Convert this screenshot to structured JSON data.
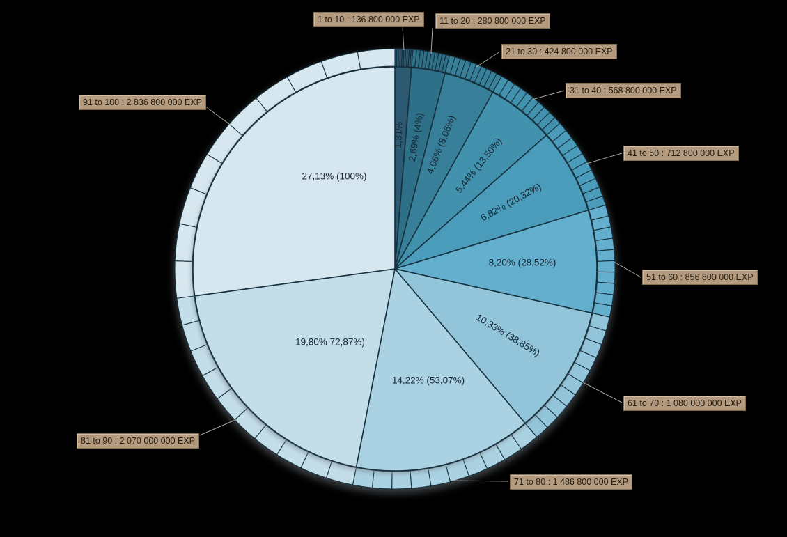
{
  "background": "#000000",
  "chart_data": {
    "type": "pie",
    "title": "",
    "unit": "EXP",
    "legend_position": "none",
    "start_angle_deg": 0,
    "direction": "clockwise",
    "outer_ring": "each slice subdivided into 10 level ticks (100 ticks total)",
    "categories": [
      "1 to 10",
      "11 to 20",
      "21 to 30",
      "31 to 40",
      "41 to 50",
      "51 to 60",
      "61 to 70",
      "71 to 80",
      "81 to 90",
      "91 to 100"
    ],
    "values": [
      136800000,
      280800000,
      424800000,
      568800000,
      712800000,
      856800000,
      1080000000,
      1486800000,
      2070000000,
      2836800000
    ],
    "slices": [
      {
        "range": "1 to 10",
        "value": 136800000,
        "callout": "1 to 10 : 136 800 000 EXP",
        "pct_label": "1,31%",
        "percent": 1.31,
        "cumulative_percent": 1.31,
        "color": "#2d5971"
      },
      {
        "range": "11 to 20",
        "value": 280800000,
        "callout": "11 to 20 : 280 800 000 EXP",
        "pct_label": "2,69% (4%)",
        "percent": 2.69,
        "cumulative_percent": 4.0,
        "color": "#2f7089"
      },
      {
        "range": "21 to 30",
        "value": 424800000,
        "callout": "21 to 30 : 424 800 000 EXP",
        "pct_label": "4,06% (8,06%)",
        "percent": 4.06,
        "cumulative_percent": 8.06,
        "color": "#38809a"
      },
      {
        "range": "31 to 40",
        "value": 568800000,
        "callout": "31 to 40 : 568 800 000 EXP",
        "pct_label": "5,44% (13,50%)",
        "percent": 5.44,
        "cumulative_percent": 13.5,
        "color": "#4291ad"
      },
      {
        "range": "41 to 50",
        "value": 712800000,
        "callout": "41 to 50 : 712 800 000 EXP",
        "pct_label": "6,82% (20,32%)",
        "percent": 6.82,
        "cumulative_percent": 20.32,
        "color": "#4a9cba"
      },
      {
        "range": "51 to 60",
        "value": 856800000,
        "callout": "51 to 60 : 856 800 000 EXP",
        "pct_label": "8,20% (28,52%)",
        "percent": 8.2,
        "cumulative_percent": 28.52,
        "color": "#63afcd"
      },
      {
        "range": "61 to 70",
        "value": 1080000000,
        "callout": "61 to 70 : 1 080 000 000 EXP",
        "pct_label": "10,33% (38,85%)",
        "percent": 10.33,
        "cumulative_percent": 38.85,
        "color": "#93c5da"
      },
      {
        "range": "71 to 80",
        "value": 1486800000,
        "callout": "71 to 80 : 1 486 800 000 EXP",
        "pct_label": "14,22% (53,07%)",
        "percent": 14.22,
        "cumulative_percent": 53.07,
        "color": "#abd2e2"
      },
      {
        "range": "81 to 90",
        "value": 2070000000,
        "callout": "81 to 90 : 2 070 000 000 EXP",
        "pct_label": "19,80% 72,87%)",
        "percent": 19.8,
        "cumulative_percent": 72.87,
        "color": "#c3dde9"
      },
      {
        "range": "91 to 100",
        "value": 2836800000,
        "callout": "91 to 100 : 2 836 800 000 EXP",
        "pct_label": "27,13% (100%)",
        "percent": 27.13,
        "cumulative_percent": 100.0,
        "color": "#d7e7ef"
      }
    ],
    "style": {
      "slice_stroke": "#16303d",
      "tick_stroke": "#16303d",
      "label_text_color": "#15242f",
      "callout_bg": "#b49b7f",
      "callout_border": "#85714f",
      "callout_text_color": "#241c10",
      "leader_line_color": "#a8a89e",
      "shadow_color": "#97a2ab"
    }
  }
}
